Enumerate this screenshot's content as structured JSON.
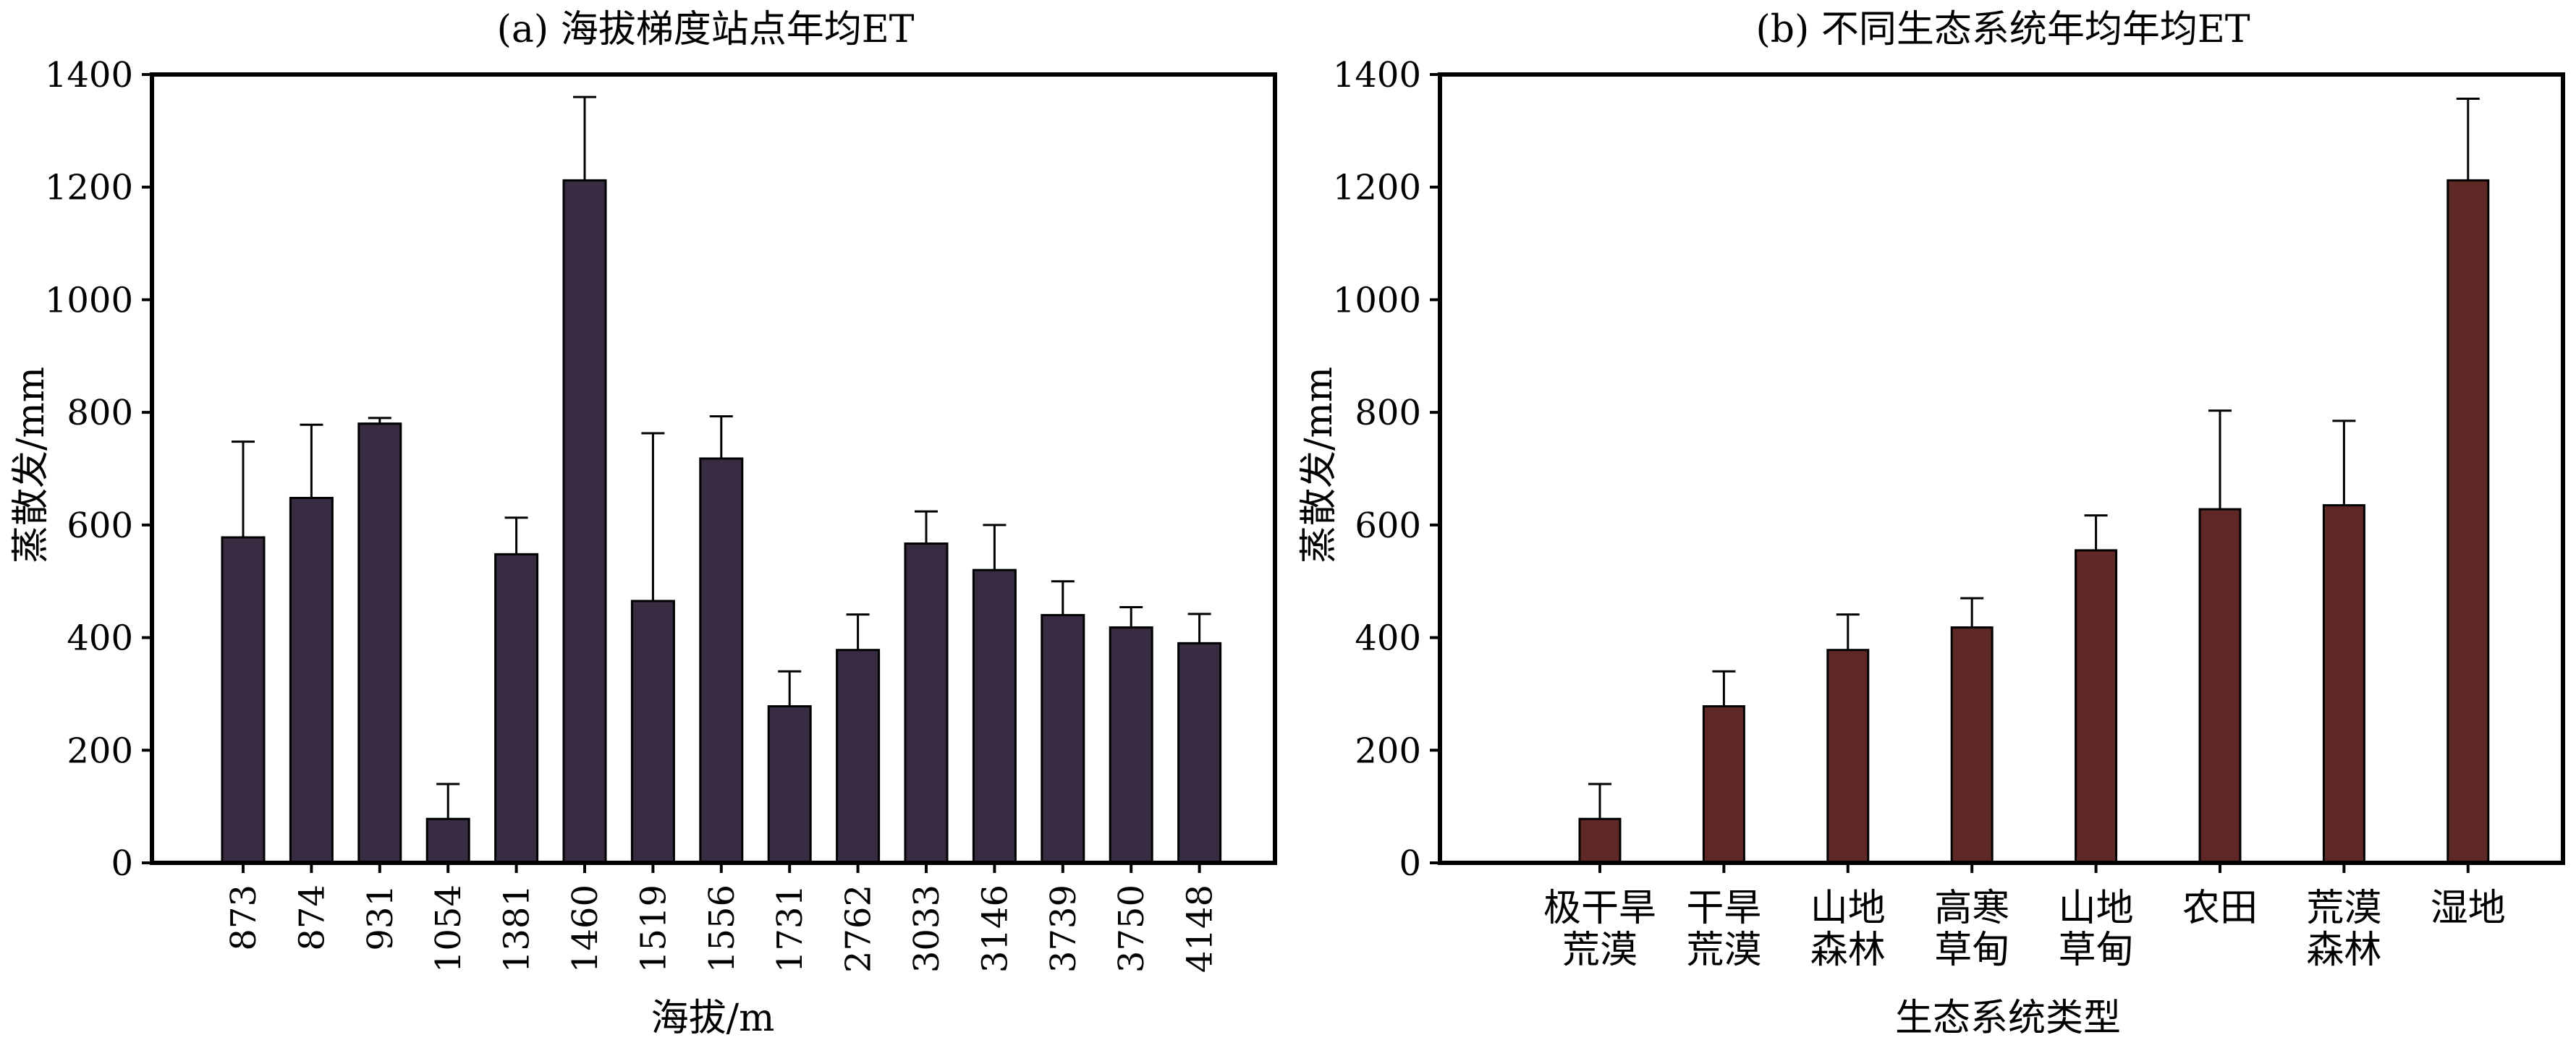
{
  "chart_data": [
    {
      "type": "bar",
      "title": "(a) 海拔梯度站点年均ET",
      "xlabel": "海拔/m",
      "ylabel": "蒸散发/mm",
      "ylim": [
        0,
        1400
      ],
      "yticks": [
        0,
        200,
        400,
        600,
        800,
        1000,
        1200,
        1400
      ],
      "categories": [
        "873",
        "874",
        "931",
        "1054",
        "1381",
        "1460",
        "1519",
        "1556",
        "1731",
        "2762",
        "3033",
        "3146",
        "3739",
        "3750",
        "4148"
      ],
      "values": [
        578,
        648,
        780,
        78,
        548,
        1212,
        465,
        718,
        278,
        378,
        567,
        520,
        440,
        418,
        390
      ],
      "errors": [
        170,
        130,
        10,
        62,
        65,
        148,
        298,
        75,
        62,
        63,
        57,
        80,
        60,
        36,
        52
      ],
      "color": "#382c42"
    },
    {
      "type": "bar",
      "title": "(b) 不同生态系统年均年均ET",
      "xlabel": "生态系统类型",
      "ylabel": "蒸散发/mm",
      "ylim": [
        0,
        1400
      ],
      "yticks": [
        0,
        200,
        400,
        600,
        800,
        1000,
        1200,
        1400
      ],
      "categories": [
        [
          "极干旱",
          "荒漠"
        ],
        [
          "干旱",
          "荒漠"
        ],
        [
          "山地",
          "森林"
        ],
        [
          "高寒",
          "草甸"
        ],
        [
          "山地",
          "草甸"
        ],
        [
          "农田"
        ],
        [
          "荒漠",
          "森林"
        ],
        [
          "湿地"
        ]
      ],
      "values": [
        78,
        278,
        378,
        418,
        555,
        628,
        635,
        1212
      ],
      "errors": [
        62,
        62,
        63,
        52,
        62,
        175,
        150,
        145
      ],
      "color": "#5d2826"
    }
  ]
}
